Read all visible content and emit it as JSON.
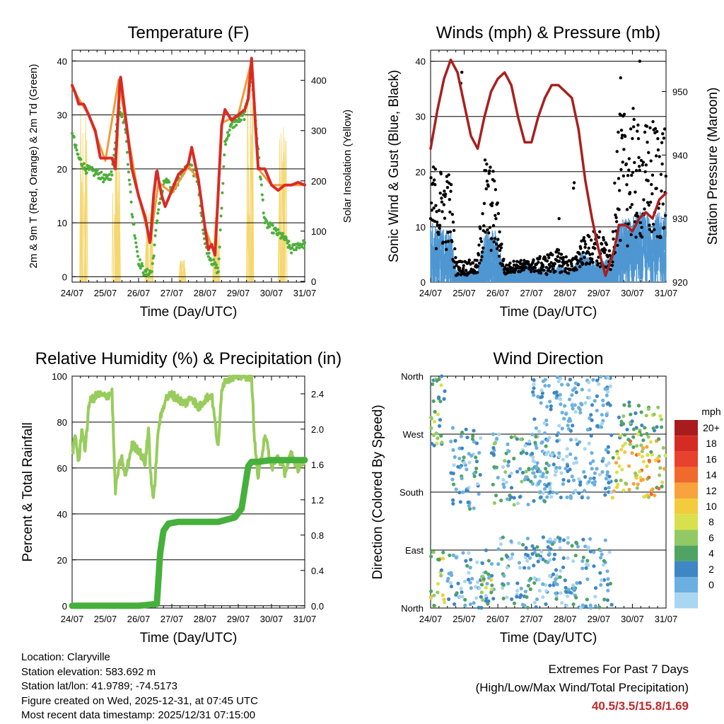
{
  "colors": {
    "temp_2m": "#d92b25",
    "temp_9m": "#f09a3a",
    "dewpoint": "#4caf3a",
    "solar": "#f5d76e",
    "wind": "#4f97d2",
    "gust": "#000000",
    "pressure": "#a8201f",
    "rh": "#98cc5c",
    "precip": "#46b03c"
  },
  "chart_data": [
    {
      "type": "line",
      "id": "temperature",
      "title": "Temperature (F)",
      "xlabel": "Time (Day/UTC)",
      "ylabel": "2m & 9m T (Red, Orange) & 2m Td (Green)",
      "y2label": "Solar Insolation (Yellow)",
      "xlim": [
        0,
        7
      ],
      "ylim": [
        -1,
        42
      ],
      "y2lim": [
        -1.4,
        460
      ],
      "xticks": [
        "24/07",
        "25/07",
        "26/07",
        "27/07",
        "28/07",
        "29/07",
        "30/07",
        "31/07"
      ],
      "yticks": [
        0,
        10,
        20,
        30,
        40
      ],
      "y2ticks": [
        0,
        100,
        200,
        300,
        400
      ],
      "series": [
        {
          "name": "2m T",
          "x": [
            0,
            0.1,
            0.2,
            0.35,
            0.5,
            0.6,
            0.7,
            0.85,
            1.0,
            1.2,
            1.3,
            1.4,
            1.45,
            1.6,
            1.8,
            2.0,
            2.2,
            2.35,
            2.45,
            2.55,
            2.6,
            2.7,
            2.8,
            3.0,
            3.2,
            3.4,
            3.5,
            3.6,
            3.8,
            4.0,
            4.1,
            4.2,
            4.3,
            4.5,
            4.6,
            4.8,
            5.0,
            5.2,
            5.3,
            5.4,
            5.5,
            5.6,
            5.8,
            6.0,
            6.2,
            6.4,
            6.6,
            6.8,
            7.0
          ],
          "values": [
            35.5,
            34,
            32,
            32,
            30,
            28.5,
            27,
            22,
            22,
            22,
            20,
            32,
            37.5,
            30,
            20,
            15,
            11,
            6,
            15,
            20,
            18,
            15,
            13,
            16,
            19,
            20,
            21,
            24,
            18,
            9,
            5,
            6,
            4,
            28,
            31,
            29,
            30,
            31,
            33,
            40.5,
            30,
            20,
            20,
            17,
            16,
            17,
            17,
            17.5,
            17
          ]
        },
        {
          "name": "9m T",
          "x": [
            0,
            0.2,
            0.5,
            1.0,
            1.4,
            1.6,
            2.0,
            2.35,
            2.6,
            3.0,
            3.5,
            3.8,
            4.0,
            4.3,
            4.5,
            5.0,
            5.4,
            5.6,
            6.0,
            6.5,
            7.0
          ],
          "values": [
            35,
            33,
            30,
            21.5,
            36.5,
            29,
            15,
            6.5,
            17.5,
            15.5,
            20.5,
            18,
            9,
            4,
            28.5,
            30,
            40,
            20,
            17,
            17,
            17
          ]
        },
        {
          "name": "2m Td",
          "x": [
            0,
            0.1,
            0.2,
            0.4,
            0.6,
            0.8,
            1.0,
            1.2,
            1.4,
            1.6,
            1.8,
            2.0,
            2.2,
            2.4,
            2.6,
            2.8,
            3.0,
            3.2,
            3.4,
            3.6,
            3.8,
            4.0,
            4.2,
            4.4,
            4.6,
            4.8,
            5.0,
            5.2,
            5.4,
            5.6,
            5.8,
            6.0,
            6.2,
            6.4,
            6.6,
            6.8,
            7.0
          ],
          "values": [
            27,
            24,
            22,
            20,
            19.5,
            19,
            18,
            19,
            32,
            28,
            12,
            3,
            0.5,
            1,
            13,
            18,
            16,
            18,
            20,
            20.5,
            17,
            6,
            3,
            1,
            25,
            28,
            29,
            30,
            38,
            23,
            10,
            9,
            8,
            7,
            5,
            6,
            6
          ]
        }
      ],
      "solar": {
        "name": "Solar Insolation",
        "days": [
          0,
          1,
          2,
          3,
          4,
          5,
          6
        ],
        "peaks": [
          370,
          380,
          150,
          55,
          130,
          420,
          330
        ]
      }
    },
    {
      "type": "scatter",
      "id": "winds",
      "title": "Winds (mph) & Pressure (mb)",
      "xlabel": "Time (Day/UTC)",
      "ylabel": "Sonic Wind & Gust (Blue, Black)",
      "y2label": "Station Pressure (Maroon)",
      "xlim": [
        0,
        7
      ],
      "ylim": [
        0,
        42
      ],
      "y2lim": [
        920,
        956.5
      ],
      "xticks": [
        "24/07",
        "25/07",
        "26/07",
        "27/07",
        "28/07",
        "29/07",
        "30/07",
        "31/07"
      ],
      "yticks": [
        0,
        10,
        20,
        30,
        40
      ],
      "y2ticks": [
        920,
        930,
        940,
        950
      ],
      "wind_gust_envelope": {
        "x": [
          0,
          0.6,
          0.75,
          1.4,
          1.6,
          1.9,
          2.2,
          2.5,
          3.0,
          3.4,
          3.8,
          4.2,
          4.5,
          5.0,
          5.3,
          5.4,
          5.5,
          6.0,
          6.2,
          6.6,
          7.0
        ],
        "wind": [
          10,
          9,
          2,
          2,
          8,
          9,
          2,
          3,
          3,
          2,
          3,
          2,
          5,
          3,
          4,
          3,
          10,
          11,
          12,
          11,
          12
        ],
        "gust": [
          22,
          20,
          4,
          4,
          24,
          20,
          3,
          4,
          4,
          5,
          6,
          4,
          8,
          10,
          6,
          4,
          30,
          32,
          28,
          30,
          30
        ]
      },
      "pressure": {
        "x": [
          0,
          0.2,
          0.4,
          0.6,
          0.8,
          1.0,
          1.2,
          1.4,
          1.6,
          1.8,
          2.0,
          2.2,
          2.4,
          2.6,
          2.8,
          3.0,
          3.2,
          3.4,
          3.6,
          3.8,
          4.0,
          4.2,
          4.4,
          4.6,
          4.8,
          5.0,
          5.2,
          5.4,
          5.5,
          5.6,
          5.8,
          6.0,
          6.2,
          6.4,
          6.6,
          6.8,
          7.0
        ],
        "values": [
          941,
          947,
          952,
          955,
          953,
          948,
          943,
          941,
          946,
          950,
          952,
          953,
          951,
          946,
          942,
          942,
          946,
          949,
          951,
          951,
          950,
          949,
          944,
          936,
          930,
          925,
          921,
          924,
          926,
          929,
          929,
          928,
          930,
          931,
          930,
          933,
          934
        ]
      }
    },
    {
      "type": "line",
      "id": "humidity",
      "title": "Relative Humidity (%) & Precipitation (in)",
      "xlabel": "Time (Day/UTC)",
      "ylabel": "Percent & Total Rainfall",
      "xlim": [
        0,
        7
      ],
      "ylim": [
        -1,
        100
      ],
      "y2lim": [
        -0.026,
        2.6
      ],
      "xticks": [
        "24/07",
        "25/07",
        "26/07",
        "27/07",
        "28/07",
        "29/07",
        "30/07",
        "31/07"
      ],
      "yticks": [
        0,
        20,
        40,
        60,
        80,
        100
      ],
      "y2ticks": [
        "0.0",
        "0.4",
        "0.8",
        "1.2",
        "1.6",
        "2.0",
        "2.4"
      ],
      "series": [
        {
          "name": "RH",
          "x": [
            0,
            0.1,
            0.2,
            0.3,
            0.4,
            0.5,
            0.6,
            0.8,
            1.0,
            1.2,
            1.3,
            1.4,
            1.5,
            1.6,
            1.8,
            2.0,
            2.2,
            2.3,
            2.35,
            2.45,
            2.6,
            2.8,
            3.0,
            3.2,
            3.4,
            3.6,
            3.8,
            4.0,
            4.2,
            4.4,
            4.5,
            4.6,
            4.8,
            5.0,
            5.2,
            5.4,
            5.5,
            5.6,
            5.8,
            6.0,
            6.2,
            6.4,
            6.6,
            6.8,
            7.0
          ],
          "values": [
            66,
            74,
            62,
            78,
            67,
            88,
            90,
            92,
            91,
            93,
            50,
            60,
            64,
            56,
            70,
            68,
            62,
            78,
            60,
            45,
            78,
            90,
            92,
            90,
            88,
            91,
            86,
            90,
            92,
            68,
            95,
            98,
            100,
            100,
            100,
            100,
            70,
            55,
            75,
            60,
            65,
            58,
            66,
            60,
            64
          ]
        },
        {
          "name": "Total Rainfall",
          "x": [
            0,
            1,
            2,
            2.55,
            2.65,
            2.75,
            2.9,
            3.2,
            4.0,
            4.4,
            4.9,
            5.1,
            5.3,
            5.4,
            5.6,
            6.0,
            7.0
          ],
          "values": [
            0,
            0,
            0,
            0.02,
            0.6,
            0.85,
            0.93,
            0.95,
            0.95,
            0.95,
            1.0,
            1.1,
            1.58,
            1.63,
            1.63,
            1.65,
            1.65
          ]
        }
      ]
    },
    {
      "type": "scatter",
      "id": "wind_direction",
      "title": "Wind Direction",
      "xlabel": "Time (Day/UTC)",
      "ylabel": "Direction (Colored By Speed)",
      "xlim": [
        0,
        7
      ],
      "ylim": [
        0,
        360
      ],
      "xticks": [
        "24/07",
        "25/07",
        "26/07",
        "27/07",
        "28/07",
        "29/07",
        "30/07",
        "31/07"
      ],
      "yticks": [
        "North",
        "East",
        "South",
        "West",
        "North"
      ],
      "legend": {
        "title": "mph",
        "labels": [
          "20+",
          "18",
          "16",
          "14",
          "12",
          "10",
          "8",
          "6",
          "4",
          "2",
          "0"
        ],
        "colors": [
          "#a81c1d",
          "#d42c23",
          "#e8412d",
          "#f06a2b",
          "#f8a33d",
          "#f3cc3e",
          "#d9e04e",
          "#93c964",
          "#4fa363",
          "#3e86c4",
          "#6bb0e0",
          "#a9d6f0"
        ]
      },
      "clusters": [
        {
          "x0": 0,
          "x1": 0.45,
          "d0": 0,
          "d1": 90,
          "s0": 4,
          "s1": 12
        },
        {
          "x0": 0,
          "x1": 0.45,
          "d0": 240,
          "d1": 360,
          "s0": 3,
          "s1": 10
        },
        {
          "x0": 0.5,
          "x1": 1.9,
          "d0": 0,
          "d1": 90,
          "s0": 0,
          "s1": 6
        },
        {
          "x0": 0.6,
          "x1": 1.5,
          "d0": 150,
          "d1": 280,
          "s0": 0,
          "s1": 6
        },
        {
          "x0": 1.5,
          "x1": 1.85,
          "d0": 10,
          "d1": 60,
          "s0": 4,
          "s1": 12
        },
        {
          "x0": 1.8,
          "x1": 3.5,
          "d0": 160,
          "d1": 270,
          "s0": 0,
          "s1": 8
        },
        {
          "x0": 2.0,
          "x1": 5.4,
          "d0": 0,
          "d1": 110,
          "s0": 0,
          "s1": 6
        },
        {
          "x0": 3.0,
          "x1": 5.4,
          "d0": 170,
          "d1": 360,
          "s0": 0,
          "s1": 4
        },
        {
          "x0": 5.4,
          "x1": 7.0,
          "d0": 170,
          "d1": 260,
          "s0": 6,
          "s1": 16
        },
        {
          "x0": 5.6,
          "x1": 7.0,
          "d0": 260,
          "d1": 320,
          "s0": 4,
          "s1": 10
        }
      ]
    }
  ],
  "info": {
    "location": "Location: Claryville",
    "elevation": "Station elevation: 583.692 m",
    "latlon": "Station lat/lon: 41.9789; -74.5173",
    "created": "Figure created on Wed, 2025-12-31, at 07:45 UTC",
    "recent": "Most recent data timestamp: 2025/12/31 07:15:00"
  },
  "extremes": {
    "title": "Extremes For Past 7 Days",
    "subtitle": "(High/Low/Max Wind/Total Precipitation)",
    "values": "40.5/3.5/15.8/1.69"
  }
}
